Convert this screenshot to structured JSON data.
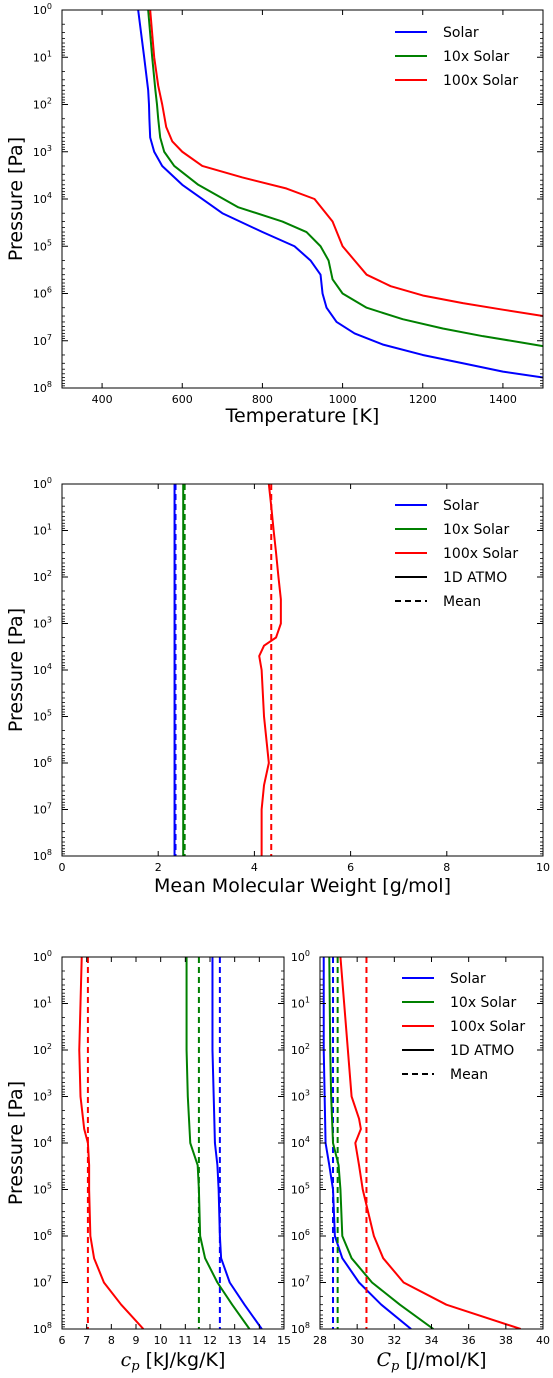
{
  "colors": {
    "Solar": "#0000ff",
    "10x Solar": "#008000",
    "100x Solar": "#ff0000",
    "1D ATMO": "#000000",
    "Mean": "#000000"
  },
  "chart_data": [
    {
      "type": "line",
      "xlabel": "Temperature [K]",
      "ylabel": "Pressure [Pa]",
      "xlim": [
        300,
        1500
      ],
      "ylim": [
        1,
        100000000.0
      ],
      "yscale": "log",
      "yinverted": true,
      "xticks": [
        "400",
        "600",
        "800",
        "1000",
        "1200",
        "1400"
      ],
      "yticks": [
        "10^0",
        "10^1",
        "10^2",
        "10^3",
        "10^4",
        "10^5",
        "10^6",
        "10^7",
        "10^8"
      ],
      "legend": [
        "Solar",
        "10x Solar",
        "100x Solar"
      ],
      "legend_loc": "upper right",
      "series": [
        {
          "name": "Solar",
          "style": "solid",
          "points": [
            [
              490,
              1
            ],
            [
              505,
              10
            ],
            [
              515,
              50
            ],
            [
              517,
              100
            ],
            [
              518,
              200
            ],
            [
              520,
              500
            ],
            [
              530,
              1000
            ],
            [
              550,
              2000
            ],
            [
              600,
              5000
            ],
            [
              700,
              20000
            ],
            [
              800,
              50000
            ],
            [
              880,
              100000
            ],
            [
              920,
              200000
            ],
            [
              945,
              400000
            ],
            [
              950,
              1000000
            ],
            [
              960,
              2000000
            ],
            [
              985,
              4000000
            ],
            [
              1030,
              7000000
            ],
            [
              1100,
              12000000
            ],
            [
              1200,
              20000000
            ],
            [
              1300,
              30000000
            ],
            [
              1400,
              45000000
            ],
            [
              1500,
              60000000
            ]
          ]
        },
        {
          "name": "10x Solar",
          "style": "solid",
          "points": [
            [
              515,
              1
            ],
            [
              525,
              10
            ],
            [
              533,
              50
            ],
            [
              537,
              100
            ],
            [
              540,
              200
            ],
            [
              545,
              500
            ],
            [
              555,
              1000
            ],
            [
              580,
              2000
            ],
            [
              640,
              5000
            ],
            [
              740,
              15000
            ],
            [
              850,
              30000
            ],
            [
              910,
              50000
            ],
            [
              945,
              100000
            ],
            [
              965,
              200000
            ],
            [
              975,
              500000
            ],
            [
              1000,
              1000000
            ],
            [
              1060,
              2000000
            ],
            [
              1150,
              3500000
            ],
            [
              1250,
              5500000
            ],
            [
              1350,
              8000000
            ],
            [
              1450,
              11000000
            ],
            [
              1500,
              13000000
            ]
          ]
        },
        {
          "name": "100x Solar",
          "style": "solid",
          "points": [
            [
              520,
              1
            ],
            [
              530,
              10
            ],
            [
              540,
              40
            ],
            [
              550,
              100
            ],
            [
              560,
              300
            ],
            [
              575,
              600
            ],
            [
              600,
              1000
            ],
            [
              650,
              2000
            ],
            [
              750,
              3500
            ],
            [
              860,
              6000
            ],
            [
              930,
              10000
            ],
            [
              975,
              30000
            ],
            [
              1000,
              100000
            ],
            [
              1030,
              200000
            ],
            [
              1060,
              400000
            ],
            [
              1120,
              700000
            ],
            [
              1200,
              1100000
            ],
            [
              1300,
              1600000
            ],
            [
              1400,
              2200000
            ],
            [
              1500,
              3000000
            ]
          ]
        }
      ]
    },
    {
      "type": "line",
      "xlabel": "Mean Molecular Weight [g/mol]",
      "ylabel": "Pressure [Pa]",
      "xlim": [
        0,
        10
      ],
      "ylim": [
        1,
        100000000.0
      ],
      "yscale": "log",
      "yinverted": true,
      "xticks": [
        "0",
        "2",
        "4",
        "6",
        "8",
        "10"
      ],
      "yticks": [
        "10^0",
        "10^1",
        "10^2",
        "10^3",
        "10^4",
        "10^5",
        "10^6",
        "10^7",
        "10^8"
      ],
      "legend": [
        "Solar",
        "10x Solar",
        "100x Solar",
        "1D ATMO",
        "Mean"
      ],
      "legend_loc": "upper right",
      "series": [
        {
          "name": "Solar",
          "style": "solid",
          "points": [
            [
              2.34,
              1
            ],
            [
              2.34,
              100000000.0
            ]
          ]
        },
        {
          "name": "Solar",
          "style": "dashed",
          "points": [
            [
              2.36,
              1
            ],
            [
              2.36,
              100000000.0
            ]
          ]
        },
        {
          "name": "10x Solar",
          "style": "solid",
          "points": [
            [
              2.52,
              1
            ],
            [
              2.52,
              100000000.0
            ]
          ]
        },
        {
          "name": "10x Solar",
          "style": "dashed",
          "points": [
            [
              2.55,
              1
            ],
            [
              2.55,
              100000000.0
            ]
          ]
        },
        {
          "name": "100x Solar",
          "style": "solid",
          "points": [
            [
              4.3,
              1
            ],
            [
              4.35,
              3
            ],
            [
              4.4,
              10
            ],
            [
              4.45,
              30
            ],
            [
              4.5,
              100
            ],
            [
              4.55,
              300
            ],
            [
              4.55,
              1000
            ],
            [
              4.45,
              2000
            ],
            [
              4.2,
              3000
            ],
            [
              4.1,
              5000
            ],
            [
              4.15,
              10000
            ],
            [
              4.2,
              100000
            ],
            [
              4.3,
              1000000
            ],
            [
              4.2,
              3000000
            ],
            [
              4.15,
              10000000
            ],
            [
              4.15,
              100000000.0
            ]
          ]
        },
        {
          "name": "100x Solar",
          "style": "dashed",
          "points": [
            [
              4.35,
              1
            ],
            [
              4.35,
              100000000.0
            ]
          ]
        }
      ]
    },
    {
      "type": "line",
      "xlabel": "c_p [kJ/kg/K]",
      "ylabel": "Pressure [Pa]",
      "xlim": [
        6,
        15
      ],
      "ylim": [
        1,
        100000000.0
      ],
      "yscale": "log",
      "yinverted": true,
      "xticks": [
        "6",
        "7",
        "8",
        "9",
        "10",
        "11",
        "12",
        "13",
        "14",
        "15"
      ],
      "yticks": [
        "10^0",
        "10^1",
        "10^2",
        "10^3",
        "10^4",
        "10^5",
        "10^6",
        "10^7",
        "10^8"
      ],
      "series": [
        {
          "name": "Solar",
          "style": "solid",
          "points": [
            [
              12.1,
              1
            ],
            [
              12.1,
              10
            ],
            [
              12.1,
              100
            ],
            [
              12.15,
              1000
            ],
            [
              12.2,
              10000
            ],
            [
              12.3,
              30000
            ],
            [
              12.35,
              100000
            ],
            [
              12.4,
              1000000
            ],
            [
              12.45,
              3000000
            ],
            [
              12.8,
              10000000
            ],
            [
              13.4,
              30000000
            ],
            [
              14.1,
              100000000.0
            ]
          ]
        },
        {
          "name": "Solar",
          "style": "dashed",
          "points": [
            [
              12.4,
              1
            ],
            [
              12.4,
              100000000.0
            ]
          ]
        },
        {
          "name": "10x Solar",
          "style": "solid",
          "points": [
            [
              11.05,
              1
            ],
            [
              11.05,
              100
            ],
            [
              11.1,
              1000
            ],
            [
              11.2,
              10000
            ],
            [
              11.5,
              30000
            ],
            [
              11.55,
              100000
            ],
            [
              11.6,
              1000000
            ],
            [
              11.8,
              3000000
            ],
            [
              12.3,
              10000000
            ],
            [
              12.9,
              30000000
            ],
            [
              13.6,
              100000000.0
            ]
          ]
        },
        {
          "name": "10x Solar",
          "style": "dashed",
          "points": [
            [
              11.55,
              1
            ],
            [
              11.55,
              100000000.0
            ]
          ]
        },
        {
          "name": "100x Solar",
          "style": "solid",
          "points": [
            [
              6.8,
              1
            ],
            [
              6.75,
              10
            ],
            [
              6.7,
              100
            ],
            [
              6.75,
              1000
            ],
            [
              6.9,
              5000
            ],
            [
              7.05,
              10000
            ],
            [
              7.1,
              30000
            ],
            [
              7.1,
              100000
            ],
            [
              7.15,
              1000000
            ],
            [
              7.3,
              3000000
            ],
            [
              7.7,
              10000000
            ],
            [
              8.4,
              30000000
            ],
            [
              9.3,
              100000000.0
            ]
          ]
        },
        {
          "name": "100x Solar",
          "style": "dashed",
          "points": [
            [
              7.05,
              1
            ],
            [
              7.05,
              100000000.0
            ]
          ]
        }
      ]
    },
    {
      "type": "line",
      "xlabel": "C_p [J/mol/K]",
      "xlim": [
        28,
        40
      ],
      "ylim": [
        1,
        100000000.0
      ],
      "yscale": "log",
      "yinverted": true,
      "xticks": [
        "28",
        "30",
        "32",
        "34",
        "36",
        "38",
        "40"
      ],
      "yticks": [
        "10^0",
        "10^1",
        "10^2",
        "10^3",
        "10^4",
        "10^5",
        "10^6",
        "10^7",
        "10^8"
      ],
      "legend": [
        "Solar",
        "10x Solar",
        "100x Solar",
        "1D ATMO",
        "Mean"
      ],
      "legend_loc": "upper right",
      "series": [
        {
          "name": "Solar",
          "style": "solid",
          "points": [
            [
              28.2,
              1
            ],
            [
              28.2,
              100
            ],
            [
              28.25,
              1000
            ],
            [
              28.3,
              10000
            ],
            [
              28.5,
              30000
            ],
            [
              28.7,
              100000
            ],
            [
              28.8,
              1000000
            ],
            [
              29.2,
              3000000
            ],
            [
              30.1,
              10000000
            ],
            [
              31.3,
              30000000
            ],
            [
              32.9,
              100000000.0
            ]
          ]
        },
        {
          "name": "Solar",
          "style": "dashed",
          "points": [
            [
              28.7,
              1
            ],
            [
              28.7,
              100000000.0
            ]
          ]
        },
        {
          "name": "10x Solar",
          "style": "solid",
          "points": [
            [
              28.5,
              1
            ],
            [
              28.55,
              100
            ],
            [
              28.6,
              1000
            ],
            [
              28.7,
              10000
            ],
            [
              29.0,
              30000
            ],
            [
              29.1,
              100000
            ],
            [
              29.2,
              1000000
            ],
            [
              29.7,
              3000000
            ],
            [
              30.8,
              10000000
            ],
            [
              32.3,
              30000000
            ],
            [
              34.1,
              100000000.0
            ]
          ]
        },
        {
          "name": "10x Solar",
          "style": "dashed",
          "points": [
            [
              28.95,
              1
            ],
            [
              28.95,
              100000000.0
            ]
          ]
        },
        {
          "name": "100x Solar",
          "style": "solid",
          "points": [
            [
              29.1,
              1
            ],
            [
              29.3,
              10
            ],
            [
              29.5,
              100
            ],
            [
              29.7,
              1000
            ],
            [
              30.1,
              3000
            ],
            [
              30.2,
              5000
            ],
            [
              29.9,
              10000
            ],
            [
              30.1,
              30000
            ],
            [
              30.3,
              100000
            ],
            [
              30.9,
              1000000
            ],
            [
              31.4,
              3000000
            ],
            [
              32.5,
              10000000
            ],
            [
              34.8,
              30000000
            ],
            [
              38.8,
              100000000.0
            ]
          ]
        },
        {
          "name": "100x Solar",
          "style": "dashed",
          "points": [
            [
              30.5,
              1
            ],
            [
              30.5,
              100000000.0
            ]
          ]
        }
      ]
    }
  ]
}
